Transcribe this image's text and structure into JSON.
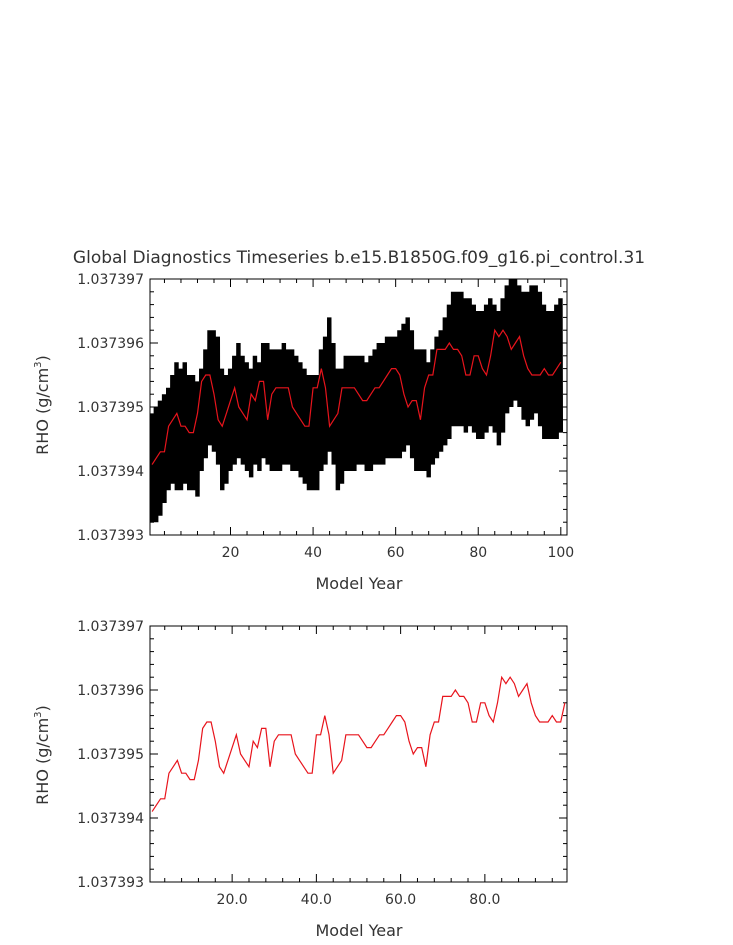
{
  "title": "Global Diagnostics Timeseries b.e15.B1850G.f09_g16.pi_control.31",
  "colors": {
    "monthly": "#000000",
    "annual": "#e8141c",
    "axis": "#000000",
    "text": "#333333"
  },
  "chart_data": [
    {
      "type": "line",
      "title": "Global Diagnostics Timeseries b.e15.B1850G.f09_g16.pi_control.31",
      "xlabel": "Model Year",
      "ylabel_main": "RHO (g/cm",
      "ylabel_sup": "3",
      "ylabel_close": ")",
      "xlim": [
        0.5,
        101.5
      ],
      "ylim": [
        1.037393,
        1.037397
      ],
      "xticks": [
        20,
        40,
        60,
        80,
        100
      ],
      "xtick_labels": [
        "20",
        "40",
        "60",
        "80",
        "100"
      ],
      "yticks": [
        1.037393,
        1.037394,
        1.037395,
        1.037396,
        1.037397
      ],
      "ytick_labels": [
        "1.037393",
        "1.037394",
        "1.037395",
        "1.037396",
        "1.037397"
      ],
      "monthly_envelope": {
        "description": "monthly oscillation range around annual mean (12 cycles/year)",
        "series_name": "monthly",
        "low": [
          1.0373932,
          1.0373932,
          1.0373933,
          1.0373935,
          1.0373937,
          1.0373938,
          1.0373937,
          1.0373937,
          1.0373938,
          1.0373937,
          1.0373937,
          1.0373936,
          1.037394,
          1.0373942,
          1.0373944,
          1.0373943,
          1.0373941,
          1.0373937,
          1.0373938,
          1.037394,
          1.0373941,
          1.0373942,
          1.0373941,
          1.037394,
          1.0373939,
          1.0373941,
          1.037394,
          1.0373942,
          1.0373941,
          1.037394,
          1.037394,
          1.037394,
          1.0373941,
          1.0373941,
          1.037394,
          1.037394,
          1.0373939,
          1.0373938,
          1.0373937,
          1.0373937,
          1.0373937,
          1.037394,
          1.0373941,
          1.0373943,
          1.0373941,
          1.0373937,
          1.0373938,
          1.037394,
          1.037394,
          1.037394,
          1.0373941,
          1.0373941,
          1.037394,
          1.037394,
          1.0373941,
          1.0373941,
          1.0373941,
          1.0373942,
          1.0373942,
          1.0373942,
          1.0373942,
          1.0373943,
          1.0373944,
          1.0373942,
          1.037394,
          1.037394,
          1.037394,
          1.0373939,
          1.0373941,
          1.0373942,
          1.0373943,
          1.0373944,
          1.0373945,
          1.0373947,
          1.0373947,
          1.0373947,
          1.0373946,
          1.0373947,
          1.0373946,
          1.0373945,
          1.0373945,
          1.0373946,
          1.0373947,
          1.0373946,
          1.0373944,
          1.0373946,
          1.0373949,
          1.037395,
          1.0373951,
          1.037395,
          1.0373948,
          1.0373947,
          1.0373948,
          1.0373949,
          1.0373947,
          1.0373945,
          1.0373945,
          1.0373945,
          1.0373945,
          1.0373946
        ],
        "high": [
          1.0373949,
          1.037395,
          1.0373951,
          1.0373952,
          1.0373953,
          1.0373955,
          1.0373957,
          1.0373956,
          1.0373957,
          1.0373955,
          1.0373955,
          1.0373954,
          1.0373956,
          1.0373959,
          1.0373962,
          1.0373962,
          1.0373961,
          1.0373956,
          1.0373955,
          1.0373956,
          1.0373958,
          1.037396,
          1.0373958,
          1.0373957,
          1.0373956,
          1.0373958,
          1.0373957,
          1.037396,
          1.037396,
          1.0373959,
          1.0373959,
          1.0373959,
          1.037396,
          1.0373959,
          1.0373959,
          1.0373958,
          1.0373957,
          1.0373956,
          1.0373955,
          1.0373955,
          1.0373955,
          1.0373959,
          1.0373961,
          1.0373964,
          1.037396,
          1.0373956,
          1.0373956,
          1.0373958,
          1.0373958,
          1.0373958,
          1.0373958,
          1.0373958,
          1.0373957,
          1.0373958,
          1.0373959,
          1.037396,
          1.037396,
          1.0373961,
          1.0373961,
          1.0373961,
          1.0373962,
          1.0373963,
          1.0373964,
          1.0373962,
          1.0373959,
          1.0373959,
          1.0373959,
          1.0373957,
          1.0373959,
          1.0373961,
          1.0373962,
          1.0373964,
          1.0373966,
          1.0373968,
          1.0373968,
          1.0373968,
          1.0373967,
          1.0373967,
          1.0373966,
          1.0373965,
          1.0373965,
          1.0373966,
          1.0373967,
          1.0373966,
          1.0373965,
          1.0373967,
          1.0373969,
          1.037397,
          1.037397,
          1.0373969,
          1.0373968,
          1.0373968,
          1.0373969,
          1.0373969,
          1.0373968,
          1.0373966,
          1.0373965,
          1.0373965,
          1.0373966,
          1.0373967
        ]
      },
      "series": [
        {
          "name": "annual",
          "x": [
            1,
            2,
            3,
            4,
            5,
            6,
            7,
            8,
            9,
            10,
            11,
            12,
            13,
            14,
            15,
            16,
            17,
            18,
            19,
            20,
            21,
            22,
            23,
            24,
            25,
            26,
            27,
            28,
            29,
            30,
            31,
            32,
            33,
            34,
            35,
            36,
            37,
            38,
            39,
            40,
            41,
            42,
            43,
            44,
            45,
            46,
            47,
            48,
            49,
            50,
            51,
            52,
            53,
            54,
            55,
            56,
            57,
            58,
            59,
            60,
            61,
            62,
            63,
            64,
            65,
            66,
            67,
            68,
            69,
            70,
            71,
            72,
            73,
            74,
            75,
            76,
            77,
            78,
            79,
            80,
            81,
            82,
            83,
            84,
            85,
            86,
            87,
            88,
            89,
            90,
            91,
            92,
            93,
            94,
            95,
            96,
            97,
            98,
            99,
            100
          ],
          "values": [
            1.0373941,
            1.0373942,
            1.0373943,
            1.0373943,
            1.0373947,
            1.0373948,
            1.0373949,
            1.0373947,
            1.0373947,
            1.0373946,
            1.0373946,
            1.0373949,
            1.0373954,
            1.0373955,
            1.0373955,
            1.0373952,
            1.0373948,
            1.0373947,
            1.0373949,
            1.0373951,
            1.0373953,
            1.037395,
            1.0373949,
            1.0373948,
            1.0373952,
            1.0373951,
            1.0373954,
            1.0373954,
            1.0373948,
            1.0373952,
            1.0373953,
            1.0373953,
            1.0373953,
            1.0373953,
            1.037395,
            1.0373949,
            1.0373948,
            1.0373947,
            1.0373947,
            1.0373953,
            1.0373953,
            1.0373956,
            1.0373953,
            1.0373947,
            1.0373948,
            1.0373949,
            1.0373953,
            1.0373953,
            1.0373953,
            1.0373953,
            1.0373952,
            1.0373951,
            1.0373951,
            1.0373952,
            1.0373953,
            1.0373953,
            1.0373954,
            1.0373955,
            1.0373956,
            1.0373956,
            1.0373955,
            1.0373952,
            1.037395,
            1.0373951,
            1.0373951,
            1.0373948,
            1.0373953,
            1.0373955,
            1.0373955,
            1.0373959,
            1.0373959,
            1.0373959,
            1.037396,
            1.0373959,
            1.0373959,
            1.0373958,
            1.0373955,
            1.0373955,
            1.0373958,
            1.0373958,
            1.0373956,
            1.0373955,
            1.0373958,
            1.0373962,
            1.0373961,
            1.0373962,
            1.0373961,
            1.0373959,
            1.037396,
            1.0373961,
            1.0373958,
            1.0373956,
            1.0373955,
            1.0373955,
            1.0373955,
            1.0373956,
            1.0373955,
            1.0373955,
            1.0373956,
            1.0373957
          ]
        }
      ]
    },
    {
      "type": "line",
      "xlabel": "Model Year",
      "ylabel_main": "RHO (g/cm",
      "ylabel_sup": "3",
      "ylabel_close": ")",
      "xlim": [
        0.5,
        99.5
      ],
      "ylim": [
        1.037393,
        1.037397
      ],
      "xticks": [
        20,
        40,
        60,
        80
      ],
      "xtick_labels": [
        "20.0",
        "40.0",
        "60.0",
        "80.0"
      ],
      "yticks": [
        1.037393,
        1.037394,
        1.037395,
        1.037396,
        1.037397
      ],
      "ytick_labels": [
        "1.037393",
        "1.037394",
        "1.037395",
        "1.037396",
        "1.037397"
      ],
      "series": [
        {
          "name": "annual",
          "x": [
            1,
            2,
            3,
            4,
            5,
            6,
            7,
            8,
            9,
            10,
            11,
            12,
            13,
            14,
            15,
            16,
            17,
            18,
            19,
            20,
            21,
            22,
            23,
            24,
            25,
            26,
            27,
            28,
            29,
            30,
            31,
            32,
            33,
            34,
            35,
            36,
            37,
            38,
            39,
            40,
            41,
            42,
            43,
            44,
            45,
            46,
            47,
            48,
            49,
            50,
            51,
            52,
            53,
            54,
            55,
            56,
            57,
            58,
            59,
            60,
            61,
            62,
            63,
            64,
            65,
            66,
            67,
            68,
            69,
            70,
            71,
            72,
            73,
            74,
            75,
            76,
            77,
            78,
            79,
            80,
            81,
            82,
            83,
            84,
            85,
            86,
            87,
            88,
            89,
            90,
            91,
            92,
            93,
            94,
            95,
            96,
            97,
            98,
            99
          ],
          "values": [
            1.0373941,
            1.0373942,
            1.0373943,
            1.0373943,
            1.0373947,
            1.0373948,
            1.0373949,
            1.0373947,
            1.0373947,
            1.0373946,
            1.0373946,
            1.0373949,
            1.0373954,
            1.0373955,
            1.0373955,
            1.0373952,
            1.0373948,
            1.0373947,
            1.0373949,
            1.0373951,
            1.0373953,
            1.037395,
            1.0373949,
            1.0373948,
            1.0373952,
            1.0373951,
            1.0373954,
            1.0373954,
            1.0373948,
            1.0373952,
            1.0373953,
            1.0373953,
            1.0373953,
            1.0373953,
            1.037395,
            1.0373949,
            1.0373948,
            1.0373947,
            1.0373947,
            1.0373953,
            1.0373953,
            1.0373956,
            1.0373953,
            1.0373947,
            1.0373948,
            1.0373949,
            1.0373953,
            1.0373953,
            1.0373953,
            1.0373953,
            1.0373952,
            1.0373951,
            1.0373951,
            1.0373952,
            1.0373953,
            1.0373953,
            1.0373954,
            1.0373955,
            1.0373956,
            1.0373956,
            1.0373955,
            1.0373952,
            1.037395,
            1.0373951,
            1.0373951,
            1.0373948,
            1.0373953,
            1.0373955,
            1.0373955,
            1.0373959,
            1.0373959,
            1.0373959,
            1.037396,
            1.0373959,
            1.0373959,
            1.0373958,
            1.0373955,
            1.0373955,
            1.0373958,
            1.0373958,
            1.0373956,
            1.0373955,
            1.0373958,
            1.0373962,
            1.0373961,
            1.0373962,
            1.0373961,
            1.0373959,
            1.037396,
            1.0373961,
            1.0373958,
            1.0373956,
            1.0373955,
            1.0373955,
            1.0373955,
            1.0373956,
            1.0373955,
            1.0373955,
            1.0373958
          ]
        }
      ]
    }
  ]
}
